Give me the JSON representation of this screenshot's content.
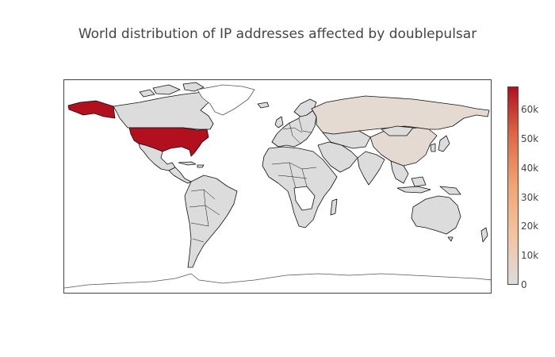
{
  "title": "World distribution of IP addresses affected by doublepulsar",
  "colorscale": {
    "colors": [
      "#dcdcdc",
      "#f5c3a0",
      "#f3a471",
      "#df6a47",
      "#b2101f"
    ],
    "min": 0,
    "max": 68000,
    "tick_labels": [
      "0",
      "10k",
      "20k",
      "30k",
      "40k",
      "50k",
      "60k"
    ],
    "tick_values": [
      0,
      10000,
      20000,
      30000,
      40000,
      50000,
      60000
    ]
  },
  "chart_data": {
    "type": "choropleth",
    "projection": "equirectangular",
    "locations": [
      {
        "region": "United States",
        "value": 68000
      },
      {
        "region": "Alaska",
        "value": 68000
      },
      {
        "region": "Russia",
        "value": 3500
      },
      {
        "region": "China",
        "value": 3000
      },
      {
        "region": "Canada",
        "value": 0
      },
      {
        "region": "Europe",
        "value": 0
      },
      {
        "region": "Africa",
        "value": 0
      },
      {
        "region": "South America",
        "value": 0
      },
      {
        "region": "Australia",
        "value": 0
      }
    ]
  }
}
